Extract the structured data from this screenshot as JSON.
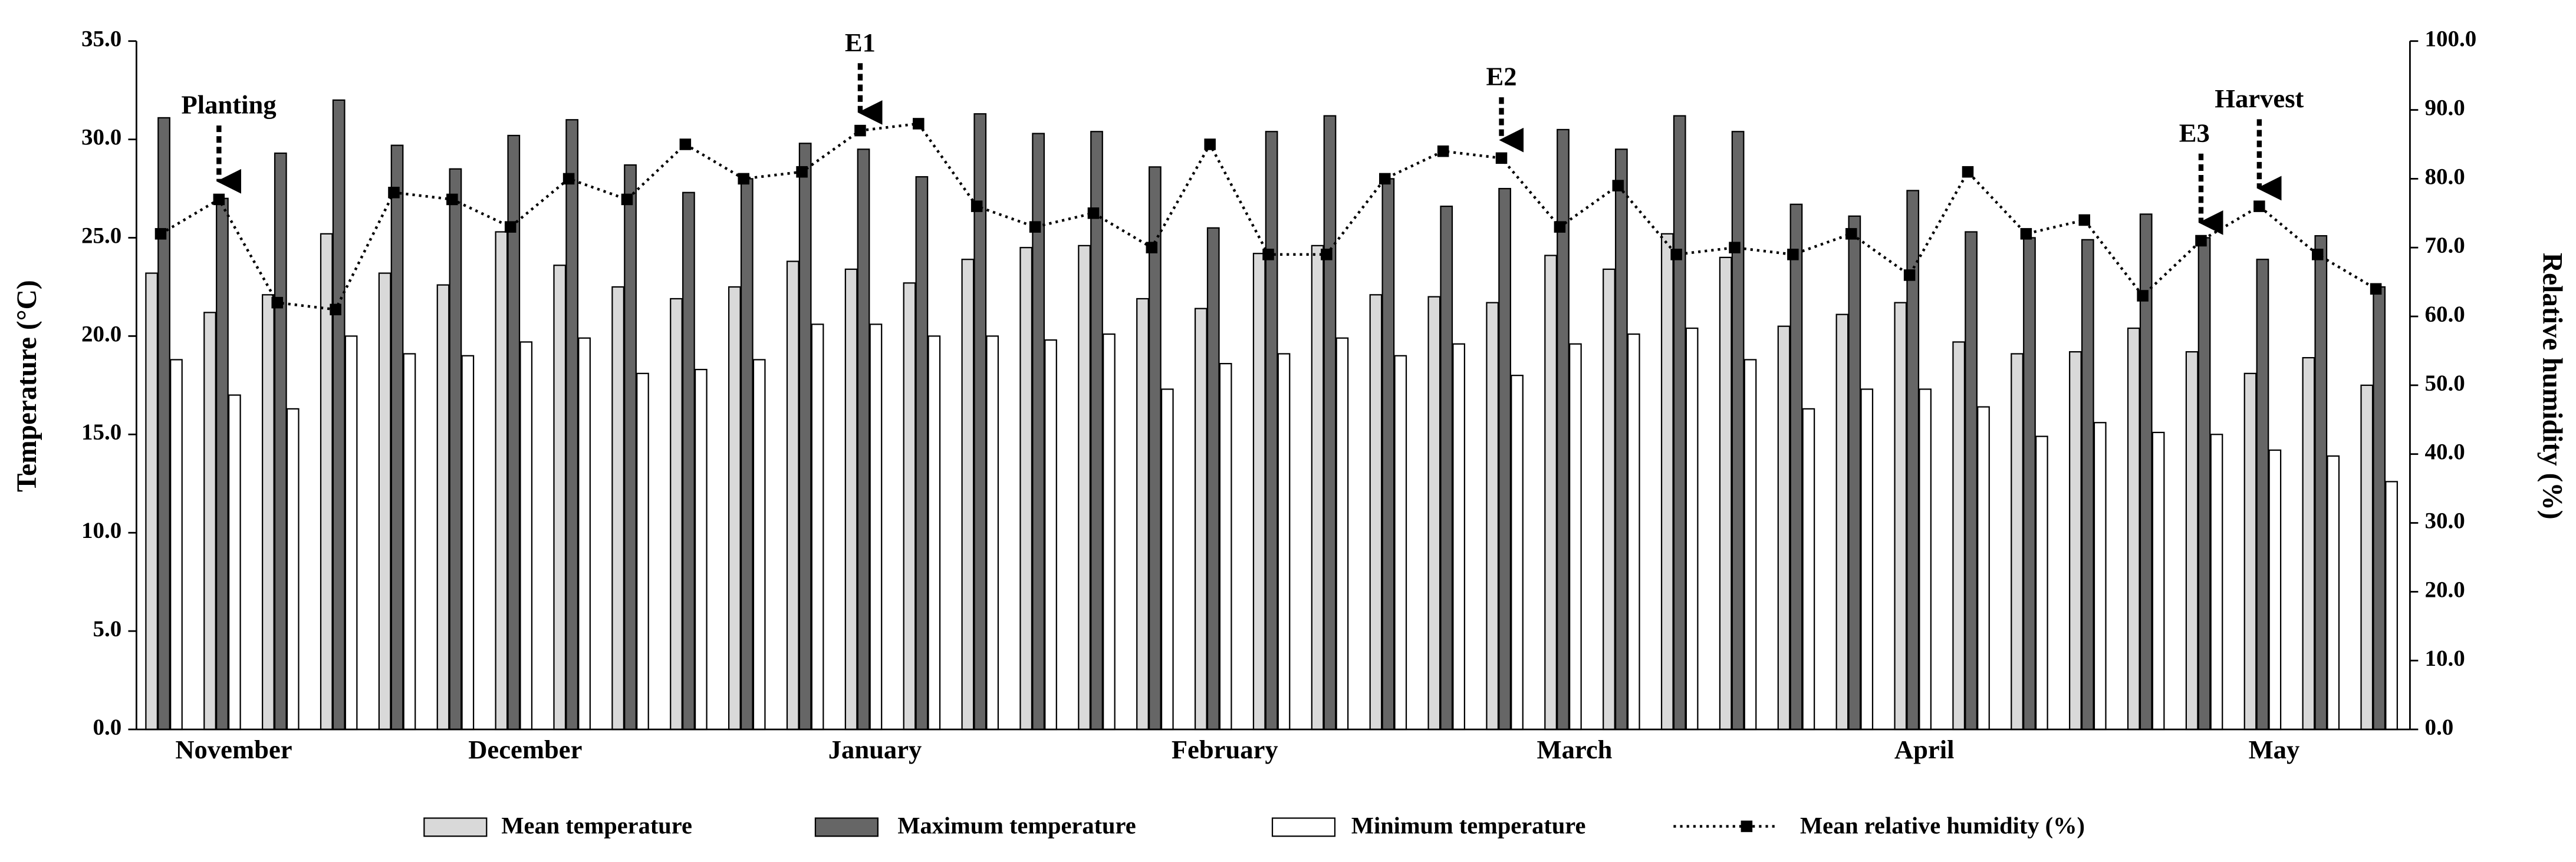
{
  "chart_data": {
    "type": "bar",
    "y_label": "Temperature (°C)",
    "y2_label": "Relative humidity (%)",
    "categories": [
      null,
      "November",
      null,
      null,
      null,
      null,
      "December",
      null,
      null,
      null,
      null,
      null,
      "January",
      null,
      null,
      null,
      null,
      null,
      "February",
      null,
      null,
      null,
      null,
      null,
      "March",
      null,
      null,
      null,
      null,
      null,
      "April",
      null,
      null,
      null,
      null,
      null,
      "May",
      null,
      null
    ],
    "series": [
      {
        "name": "Mean temperature",
        "color": "#d9d9d9",
        "values": [
          23.2,
          21.2,
          22.1,
          25.2,
          23.2,
          22.6,
          25.3,
          23.6,
          22.5,
          21.9,
          22.5,
          23.8,
          23.4,
          22.7,
          23.9,
          24.5,
          24.6,
          21.9,
          21.4,
          24.2,
          24.6,
          22.1,
          22.0,
          21.7,
          24.1,
          23.4,
          25.2,
          24.0,
          20.5,
          21.1,
          21.7,
          19.7,
          19.1,
          19.2,
          20.4,
          19.2,
          18.1,
          18.9,
          17.5
        ]
      },
      {
        "name": "Maximum temperature",
        "color": "#666666",
        "values": [
          31.1,
          27.0,
          29.3,
          32.0,
          29.7,
          28.5,
          30.2,
          31.0,
          28.7,
          27.3,
          28.0,
          29.8,
          29.5,
          28.1,
          31.3,
          30.3,
          30.4,
          28.6,
          25.5,
          30.4,
          31.2,
          28.0,
          26.6,
          27.5,
          30.5,
          29.5,
          31.2,
          30.4,
          26.7,
          26.1,
          27.4,
          25.3,
          25.0,
          24.9,
          26.2,
          25.0,
          23.9,
          25.1,
          22.5
        ]
      },
      {
        "name": "Minimum temperature",
        "color": "#ffffff",
        "values": [
          18.8,
          17.0,
          16.3,
          20.0,
          19.1,
          19.0,
          19.7,
          19.9,
          18.1,
          18.3,
          18.8,
          20.6,
          20.6,
          20.0,
          20.0,
          19.8,
          20.1,
          17.3,
          18.6,
          19.1,
          19.9,
          19.0,
          19.6,
          18.0,
          19.6,
          20.1,
          20.4,
          18.8,
          16.3,
          17.3,
          17.3,
          16.4,
          14.9,
          15.6,
          15.1,
          15.0,
          14.2,
          13.9,
          12.6
        ]
      },
      {
        "name": "Mean relative humidity (%)",
        "color": "#000000",
        "type": "line",
        "axis": "y2",
        "values": [
          72,
          77,
          62,
          61,
          78,
          77,
          73,
          80,
          77,
          85,
          80,
          81,
          87,
          88,
          76,
          73,
          75,
          70,
          85,
          69,
          69,
          80,
          84,
          83,
          73,
          79,
          69,
          70,
          69,
          72,
          66,
          81,
          72,
          74,
          63,
          71,
          76,
          69,
          64
        ]
      }
    ],
    "ylim": [
      0,
      35
    ],
    "yticks": [
      {
        "value": 0,
        "label": "0.0"
      },
      {
        "value": 5,
        "label": "5.0"
      },
      {
        "value": 10,
        "label": "10.0"
      },
      {
        "value": 15,
        "label": "15.0"
      },
      {
        "value": 20,
        "label": "20.0"
      },
      {
        "value": 25,
        "label": "25.0"
      },
      {
        "value": 30,
        "label": "30.0"
      },
      {
        "value": 35,
        "label": "35.0"
      }
    ],
    "y2lim": [
      0,
      100
    ],
    "y2ticks": [
      {
        "value": 0,
        "label": "0.0"
      },
      {
        "value": 10,
        "label": "10.0"
      },
      {
        "value": 20,
        "label": "20.0"
      },
      {
        "value": 30,
        "label": "30.0"
      },
      {
        "value": 40,
        "label": "40.0"
      },
      {
        "value": 50,
        "label": "50.0"
      },
      {
        "value": 60,
        "label": "60.0"
      },
      {
        "value": 70,
        "label": "70.0"
      },
      {
        "value": 80,
        "label": "80.0"
      },
      {
        "value": 90,
        "label": "90.0"
      },
      {
        "value": 100,
        "label": "100.0"
      }
    ],
    "annotations": [
      "Planting",
      "E1",
      "E2",
      "E3",
      "Harvest"
    ],
    "legend": "bottom"
  }
}
